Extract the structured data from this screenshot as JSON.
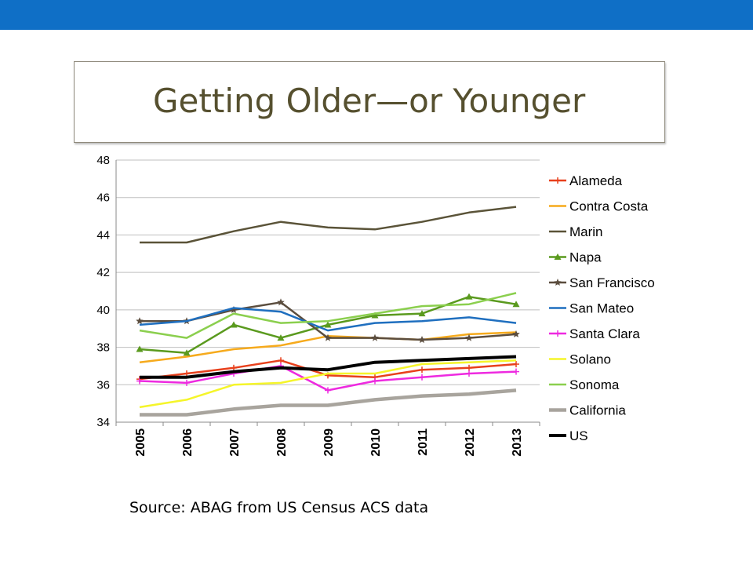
{
  "slide": {
    "title": "Getting Older—or Younger",
    "source": "Source: ABAG from US Census ACS data",
    "accent_color": "#0f6fc6"
  },
  "chart_data": {
    "type": "line",
    "title": "",
    "xlabel": "",
    "ylabel": "",
    "ylim": [
      34,
      48
    ],
    "yticks": [
      34,
      36,
      38,
      40,
      42,
      44,
      46,
      48
    ],
    "grid": "horizontal",
    "legend": "right",
    "categories": [
      "2005",
      "2006",
      "2007",
      "2008",
      "2009",
      "2010",
      "2011",
      "2012",
      "2013"
    ],
    "series": [
      {
        "name": "Alameda",
        "color": "#e8401c",
        "marker": "plus",
        "values": [
          36.3,
          36.6,
          36.9,
          37.3,
          36.5,
          36.4,
          36.8,
          36.9,
          37.1
        ]
      },
      {
        "name": "Contra Costa",
        "color": "#f6aa1c",
        "marker": "none",
        "values": [
          37.2,
          37.5,
          37.9,
          38.1,
          38.6,
          38.5,
          38.4,
          38.7,
          38.8
        ]
      },
      {
        "name": "Marin",
        "color": "#5a5338",
        "marker": "none",
        "values": [
          43.6,
          43.6,
          44.2,
          44.7,
          44.4,
          44.3,
          44.7,
          45.2,
          45.5
        ]
      },
      {
        "name": "Napa",
        "color": "#5a9a1e",
        "marker": "triangle",
        "values": [
          37.9,
          37.7,
          39.2,
          38.5,
          39.2,
          39.7,
          39.8,
          40.7,
          40.3
        ]
      },
      {
        "name": "San Francisco",
        "color": "#5b4d3e",
        "marker": "star",
        "values": [
          39.4,
          39.4,
          40.0,
          40.4,
          38.5,
          38.5,
          38.4,
          38.5,
          38.7
        ]
      },
      {
        "name": "San Mateo",
        "color": "#1f6fbf",
        "marker": "none",
        "values": [
          39.2,
          39.4,
          40.1,
          39.9,
          38.9,
          39.3,
          39.4,
          39.6,
          39.3
        ]
      },
      {
        "name": "Santa Clara",
        "color": "#ee2ae0",
        "marker": "plus",
        "values": [
          36.2,
          36.1,
          36.6,
          37.0,
          35.7,
          36.2,
          36.4,
          36.6,
          36.7
        ]
      },
      {
        "name": "Solano",
        "color": "#f5f52a",
        "marker": "none",
        "values": [
          34.8,
          35.2,
          36.0,
          36.1,
          36.6,
          36.6,
          37.1,
          37.2,
          37.3
        ]
      },
      {
        "name": "Sonoma",
        "color": "#8bcf4e",
        "marker": "none",
        "values": [
          38.9,
          38.5,
          39.8,
          39.3,
          39.4,
          39.8,
          40.2,
          40.3,
          40.9
        ]
      },
      {
        "name": "California",
        "color": "#a8a49d",
        "marker": "none",
        "values": [
          34.4,
          34.4,
          34.7,
          34.9,
          34.9,
          35.2,
          35.4,
          35.5,
          35.7
        ]
      },
      {
        "name": "US",
        "color": "#000000",
        "marker": "none",
        "values": [
          36.4,
          36.4,
          36.7,
          36.9,
          36.8,
          37.2,
          37.3,
          37.4,
          37.5
        ]
      }
    ]
  }
}
